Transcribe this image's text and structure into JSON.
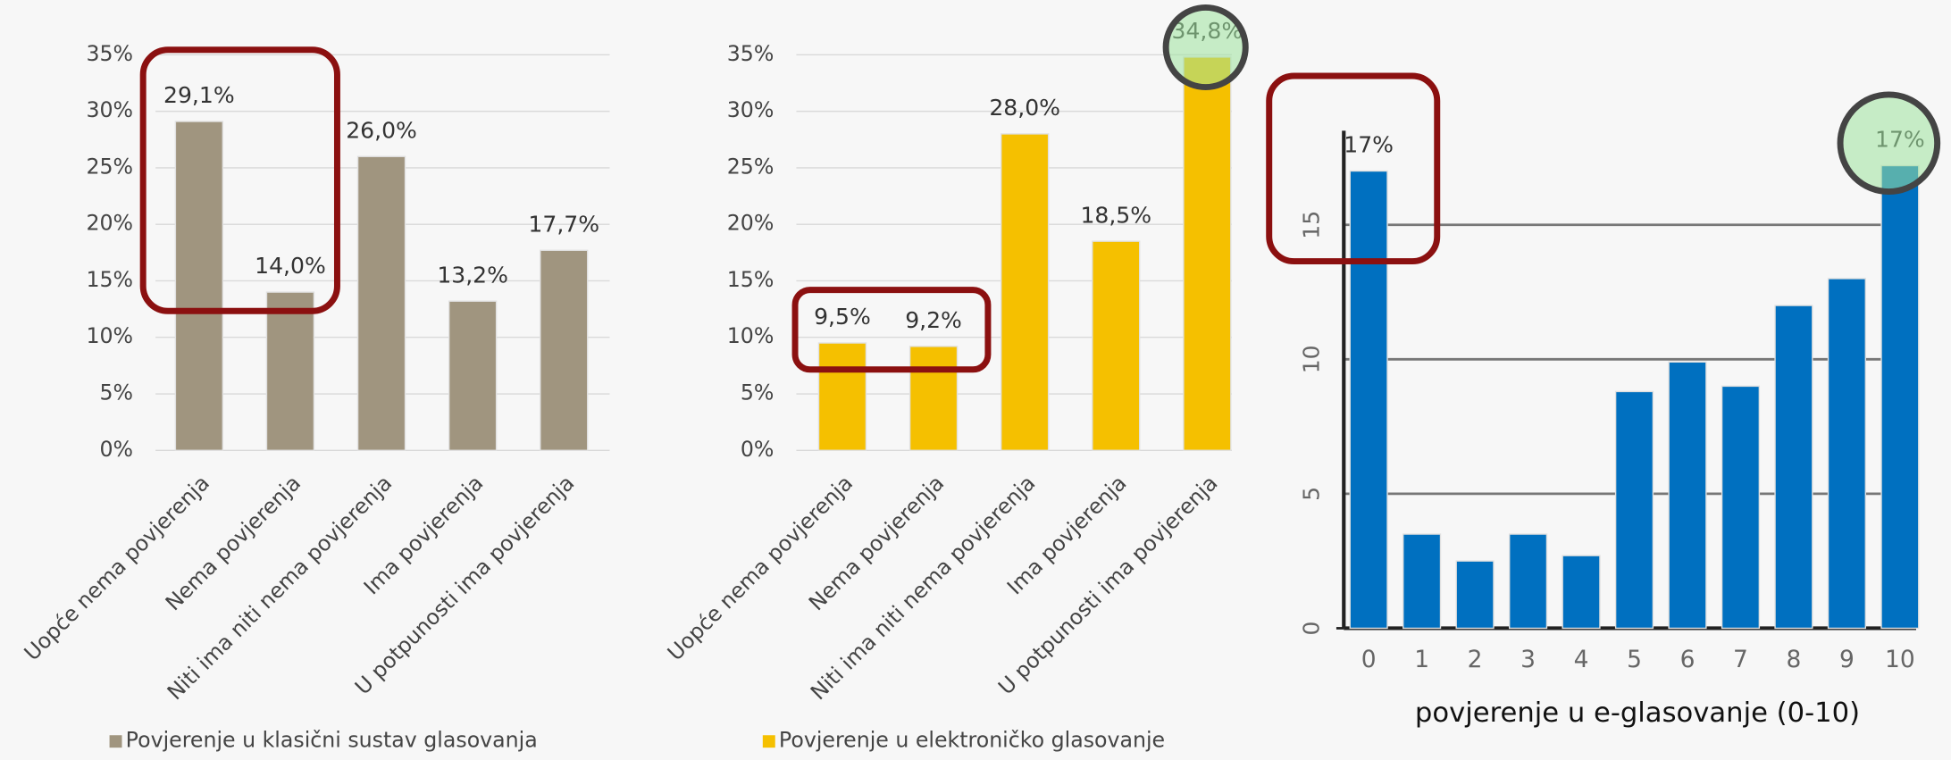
{
  "chart_data": [
    {
      "type": "bar",
      "categories": [
        "Uopće nema povjerenja",
        "Nema povjerenja",
        "Niti ima niti nema povjerenja",
        "Ima povjerenja",
        "U potpunosti ima povjerenja"
      ],
      "series": [
        {
          "name": "Povjerenje u klasični sustav glasovanja",
          "color": "#a0957f",
          "values": [
            29.1,
            14.0,
            26.0,
            13.2,
            17.7
          ],
          "value_labels": [
            "29,1%",
            "14,0%",
            "26,0%",
            "13,2%",
            "17,7%"
          ]
        }
      ],
      "ylim": [
        0,
        35
      ],
      "yticks": [
        {
          "value": 0,
          "label": "0%"
        },
        {
          "value": 5,
          "label": "5%"
        },
        {
          "value": 10,
          "label": "10%"
        },
        {
          "value": 15,
          "label": "15%"
        },
        {
          "value": 20,
          "label": "20%"
        },
        {
          "value": 25,
          "label": "25%"
        },
        {
          "value": 30,
          "label": "30%"
        },
        {
          "value": 35,
          "label": "35%"
        }
      ],
      "grid": true
    },
    {
      "type": "bar",
      "categories": [
        "Uopće nema povjerenja",
        "Nema povjerenja",
        "Niti ima niti nema povjerenja",
        "Ima povjerenja",
        "U potpunosti ima povjerenja"
      ],
      "series": [
        {
          "name": "Povjerenje u elektroničko glasovanje",
          "color": "#f5c000",
          "values": [
            9.5,
            9.2,
            28.0,
            18.5,
            34.8
          ],
          "value_labels": [
            "9,5%",
            "9,2%",
            "28,0%",
            "18,5%",
            "34,8%"
          ]
        }
      ],
      "ylim": [
        0,
        35
      ],
      "yticks": [
        {
          "value": 0,
          "label": "0%"
        },
        {
          "value": 5,
          "label": "5%"
        },
        {
          "value": 10,
          "label": "10%"
        },
        {
          "value": 15,
          "label": "15%"
        },
        {
          "value": 20,
          "label": "20%"
        },
        {
          "value": 25,
          "label": "25%"
        },
        {
          "value": 30,
          "label": "30%"
        },
        {
          "value": 35,
          "label": "35%"
        }
      ],
      "grid": true
    },
    {
      "type": "bar",
      "x_label": "povjerenje u e-glasovanje (0-10)",
      "categories": [
        0,
        1,
        2,
        3,
        4,
        5,
        6,
        7,
        8,
        9,
        10
      ],
      "series": [
        {
          "color": "#0070c0",
          "values": [
            17.0,
            3.5,
            2.5,
            3.5,
            2.7,
            8.8,
            9.9,
            9.0,
            12.0,
            13.0,
            17.2
          ],
          "value_labels": [
            "17%",
            null,
            null,
            null,
            null,
            null,
            null,
            null,
            null,
            null,
            "17%"
          ]
        }
      ],
      "ylim": [
        0,
        18.5
      ],
      "yticks": [
        0,
        5,
        10,
        15
      ],
      "grid": true
    }
  ]
}
